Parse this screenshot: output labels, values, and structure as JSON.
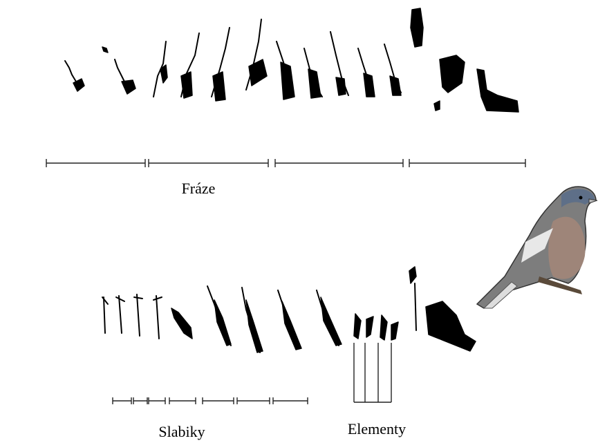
{
  "labels": {
    "phrases": "Fráze",
    "syllables": "Slabiky",
    "elements": "Elementy"
  }
}
